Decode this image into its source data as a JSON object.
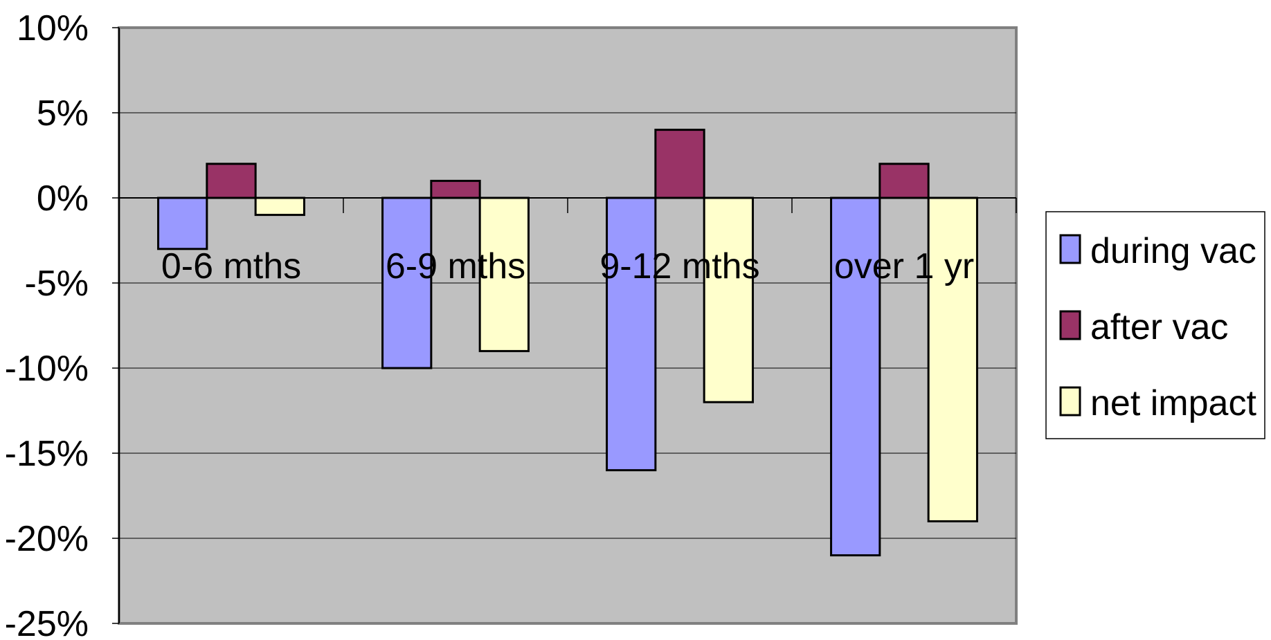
{
  "chart_data": {
    "type": "bar",
    "categories": [
      "0-6 mths",
      "6-9 mths",
      "9-12 mths",
      "over 1 yr"
    ],
    "series": [
      {
        "name": "during vac",
        "color": "#9999ff",
        "values": [
          -3,
          -10,
          -16,
          -21
        ]
      },
      {
        "name": "after vac",
        "color": "#993366",
        "values": [
          2,
          1,
          4,
          2
        ]
      },
      {
        "name": "net impact",
        "color": "#ffffcc",
        "values": [
          -1,
          -9,
          -12,
          -19
        ]
      }
    ],
    "ylim": [
      -25,
      10
    ],
    "yticks": [
      10,
      5,
      0,
      -5,
      -10,
      -15,
      -20,
      -25
    ],
    "ytick_labels": [
      "10%",
      "5%",
      "0%",
      "-5%",
      "-10%",
      "-15%",
      "-20%",
      "-25%"
    ],
    "grid": true,
    "legend_position": "right",
    "plot_background": "#c0c0c0"
  }
}
